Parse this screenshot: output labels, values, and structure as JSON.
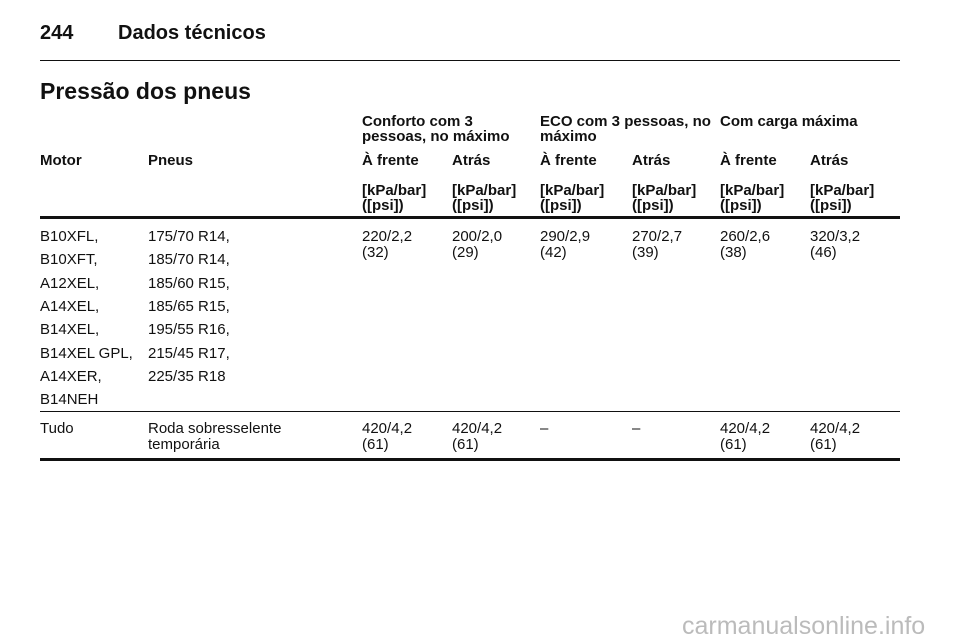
{
  "header": {
    "page": "244",
    "title": "Dados técnicos"
  },
  "section_title": "Pressão dos pneus",
  "table": {
    "groups": [
      [
        "Conforto com 3",
        "pessoas, no máximo"
      ],
      [
        "ECO com 3 pessoas, no",
        "máximo"
      ],
      [
        "Com carga máxima"
      ]
    ],
    "columns": [
      "Motor",
      "Pneus",
      "À frente",
      "Atrás",
      "À frente",
      "Atrás",
      "À frente",
      "Atrás"
    ],
    "units": [
      [
        "[kPa/bar]",
        "([psi])"
      ],
      [
        "[kPa/bar]",
        "([psi])"
      ],
      [
        "[kPa/bar]",
        "([psi])"
      ],
      [
        "[kPa/bar]",
        "([psi])"
      ],
      [
        "[kPa/bar]",
        "([psi])"
      ],
      [
        "[kPa/bar]",
        "([psi])"
      ]
    ],
    "rows": [
      {
        "motor": [
          "B10XFL,",
          "B10XFT,",
          "A12XEL,",
          "A14XEL,",
          "B14XEL,",
          "B14XEL GPL,",
          "A14XER,",
          "B14NEH"
        ],
        "tires": [
          "175/70 R14,",
          "185/70 R14,",
          "185/60 R15,",
          "185/65 R15,",
          "195/55 R16,",
          "215/45 R17,",
          "225/35 R18"
        ],
        "values": [
          [
            "220/2,2",
            "(32)"
          ],
          [
            "200/2,0",
            "(29)"
          ],
          [
            "290/2,9",
            "(42)"
          ],
          [
            "270/2,7",
            "(39)"
          ],
          [
            "260/2,6",
            "(38)"
          ],
          [
            "320/3,2",
            "(46)"
          ]
        ]
      },
      {
        "motor": [
          "Tudo"
        ],
        "tires": [
          "Roda sobresselente",
          "temporária"
        ],
        "values": [
          [
            "420/4,2",
            "(61)"
          ],
          [
            "420/4,2",
            "(61)"
          ],
          [
            "–"
          ],
          [
            "–"
          ],
          [
            "420/4,2",
            "(61)"
          ],
          [
            "420/4,2",
            "(61)"
          ]
        ]
      }
    ]
  },
  "watermark": "carmanualsonline.info"
}
